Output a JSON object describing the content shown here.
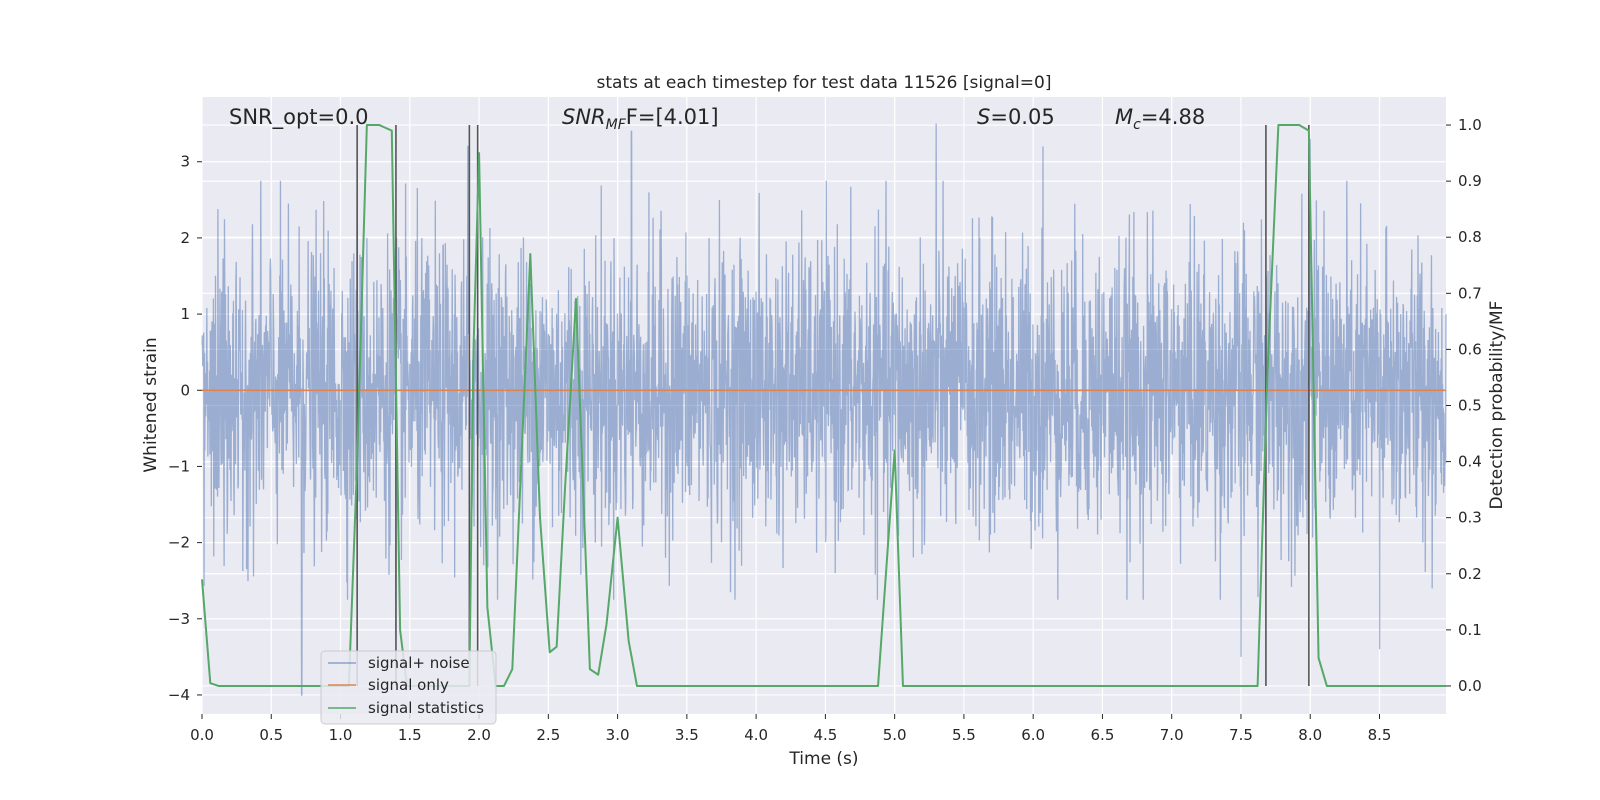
{
  "chart_data": {
    "type": "line",
    "title": "stats at each timestep for test data 11526 [signal=0]",
    "xlabel": "Time (s)",
    "ylabel": "Whitened strain",
    "ylabel_right": "Detection probability/MF",
    "xlim": [
      0.0,
      8.98
    ],
    "ylim": [
      -4.25,
      3.85
    ],
    "ylim_right": [
      -0.05,
      1.05
    ],
    "x_ticks": [
      "0.0",
      "0.5",
      "1.0",
      "1.5",
      "2.0",
      "2.5",
      "3.0",
      "3.5",
      "4.0",
      "4.5",
      "5.0",
      "5.5",
      "6.0",
      "6.5",
      "7.0",
      "7.5",
      "8.0",
      "8.5"
    ],
    "y_ticks": [
      "−4",
      "−3",
      "−2",
      "−1",
      "0",
      "1",
      "2",
      "3"
    ],
    "y_ticks_right": [
      "0.0",
      "0.1",
      "0.2",
      "0.3",
      "0.4",
      "0.5",
      "0.6",
      "0.7",
      "0.8",
      "0.9",
      "1.0"
    ],
    "grid": true,
    "legend_position": "lower-left",
    "annotations": {
      "snr_opt": "SNR_opt=0.0",
      "snr_mf_main": "SNR",
      "snr_mf_sub": "MF",
      "snr_mf_tail": "F=[4.01]",
      "s_sym": "S",
      "s_val": "=0.05",
      "mc_sym": "M",
      "mc_sub": "c",
      "mc_val": "=4.88"
    },
    "colors": {
      "background": "#eaeaf2",
      "noise": "#4c72b0",
      "signal": "#dd8452",
      "stats": "#55a868",
      "vline": "#555555",
      "grid": "#ffffff",
      "text": "#262626"
    },
    "noise": {
      "envelope_min": -2.0,
      "envelope_max": 2.0,
      "extreme_peaks": [
        [
          1.12,
          2.9
        ],
        [
          1.92,
          3.2
        ],
        [
          3.1,
          3.4
        ],
        [
          5.3,
          3.5
        ],
        [
          6.07,
          3.2
        ],
        [
          8.0,
          3.3
        ],
        [
          0.72,
          -4.0
        ],
        [
          7.5,
          -3.5
        ],
        [
          8.5,
          -3.4
        ],
        [
          1.4,
          -3.2
        ]
      ]
    },
    "series": [
      {
        "name": "signal+ noise",
        "color": "#4c72b0",
        "axis": "left",
        "kind": "noise"
      },
      {
        "name": "signal only",
        "color": "#dd8452",
        "axis": "left",
        "x": [
          0.0,
          8.98
        ],
        "y": [
          0.0,
          0.0
        ]
      },
      {
        "name": "signal statistics",
        "color": "#55a868",
        "axis": "right",
        "x": [
          0.0,
          0.06,
          0.12,
          1.06,
          1.12,
          1.19,
          1.28,
          1.37,
          1.43,
          1.48,
          1.93,
          1.96,
          2.0,
          2.06,
          2.12,
          2.18,
          2.24,
          2.37,
          2.44,
          2.51,
          2.56,
          2.62,
          2.7,
          2.8,
          2.86,
          2.92,
          3.0,
          3.08,
          3.14,
          3.2,
          4.88,
          5.0,
          5.06,
          5.12,
          7.62,
          7.69,
          7.77,
          7.92,
          7.99,
          8.06,
          8.12,
          8.98
        ],
        "y": [
          0.19,
          0.005,
          0.0,
          0.0,
          0.4,
          1.0,
          1.0,
          0.99,
          0.1,
          0.0,
          0.0,
          0.6,
          0.95,
          0.14,
          0.0,
          0.0,
          0.03,
          0.77,
          0.3,
          0.06,
          0.07,
          0.35,
          0.69,
          0.03,
          0.02,
          0.11,
          0.3,
          0.08,
          0.0,
          0.0,
          0.0,
          0.42,
          0.0,
          0.0,
          0.0,
          0.55,
          1.0,
          1.0,
          0.99,
          0.05,
          0.0,
          0.0
        ]
      }
    ],
    "vlines_x": [
      1.12,
      1.4,
      1.93,
      1.99,
      7.68,
      7.99
    ]
  }
}
